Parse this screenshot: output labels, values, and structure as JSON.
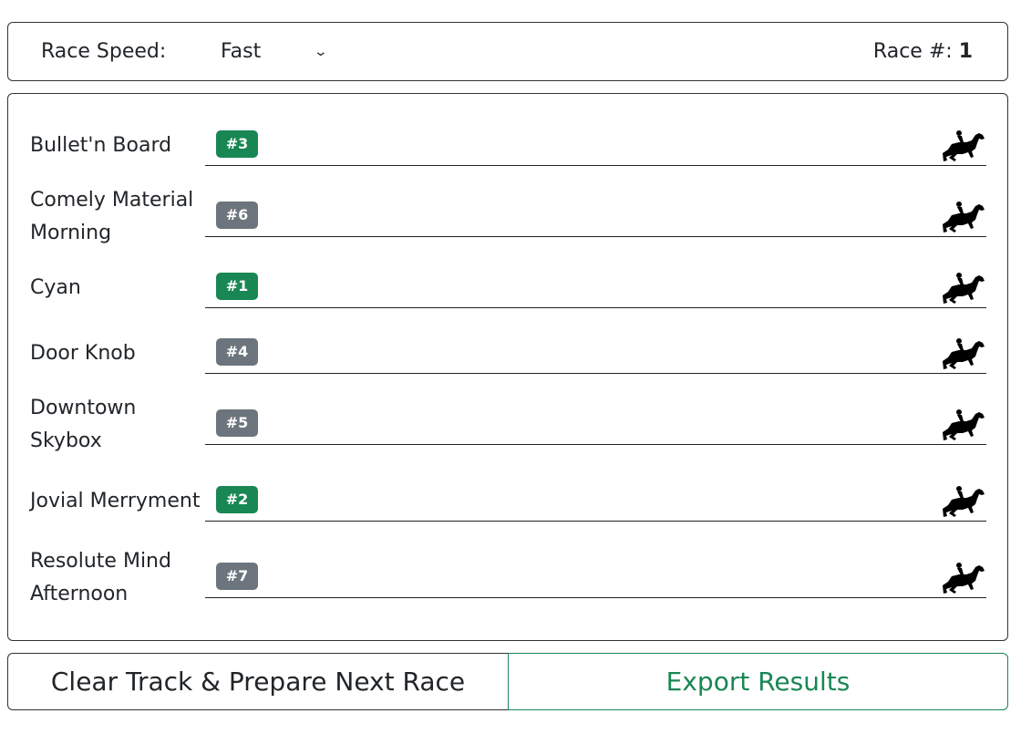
{
  "header": {
    "speed_label": "Race Speed:",
    "speed_value": "Fast",
    "race_label": "Race #:",
    "race_number": "1"
  },
  "colors": {
    "win": "#198754",
    "other": "#6c757d"
  },
  "horses": [
    {
      "name": "Bullet'n Board",
      "place": "#3",
      "color": "#198754"
    },
    {
      "name": "Comely Material Morning",
      "place": "#6",
      "color": "#6c757d"
    },
    {
      "name": "Cyan",
      "place": "#1",
      "color": "#198754"
    },
    {
      "name": "Door Knob",
      "place": "#4",
      "color": "#6c757d"
    },
    {
      "name": "Downtown Skybox",
      "place": "#5",
      "color": "#6c757d"
    },
    {
      "name": "Jovial Merryment",
      "place": "#2",
      "color": "#198754"
    },
    {
      "name": "Resolute Mind Afternoon",
      "place": "#7",
      "color": "#6c757d"
    }
  ],
  "icons": {
    "horse": "horse-racing-icon",
    "dropdown": "chevron-down-icon"
  },
  "buttons": {
    "clear": "Clear Track & Prepare Next Race",
    "export": "Export Results"
  }
}
